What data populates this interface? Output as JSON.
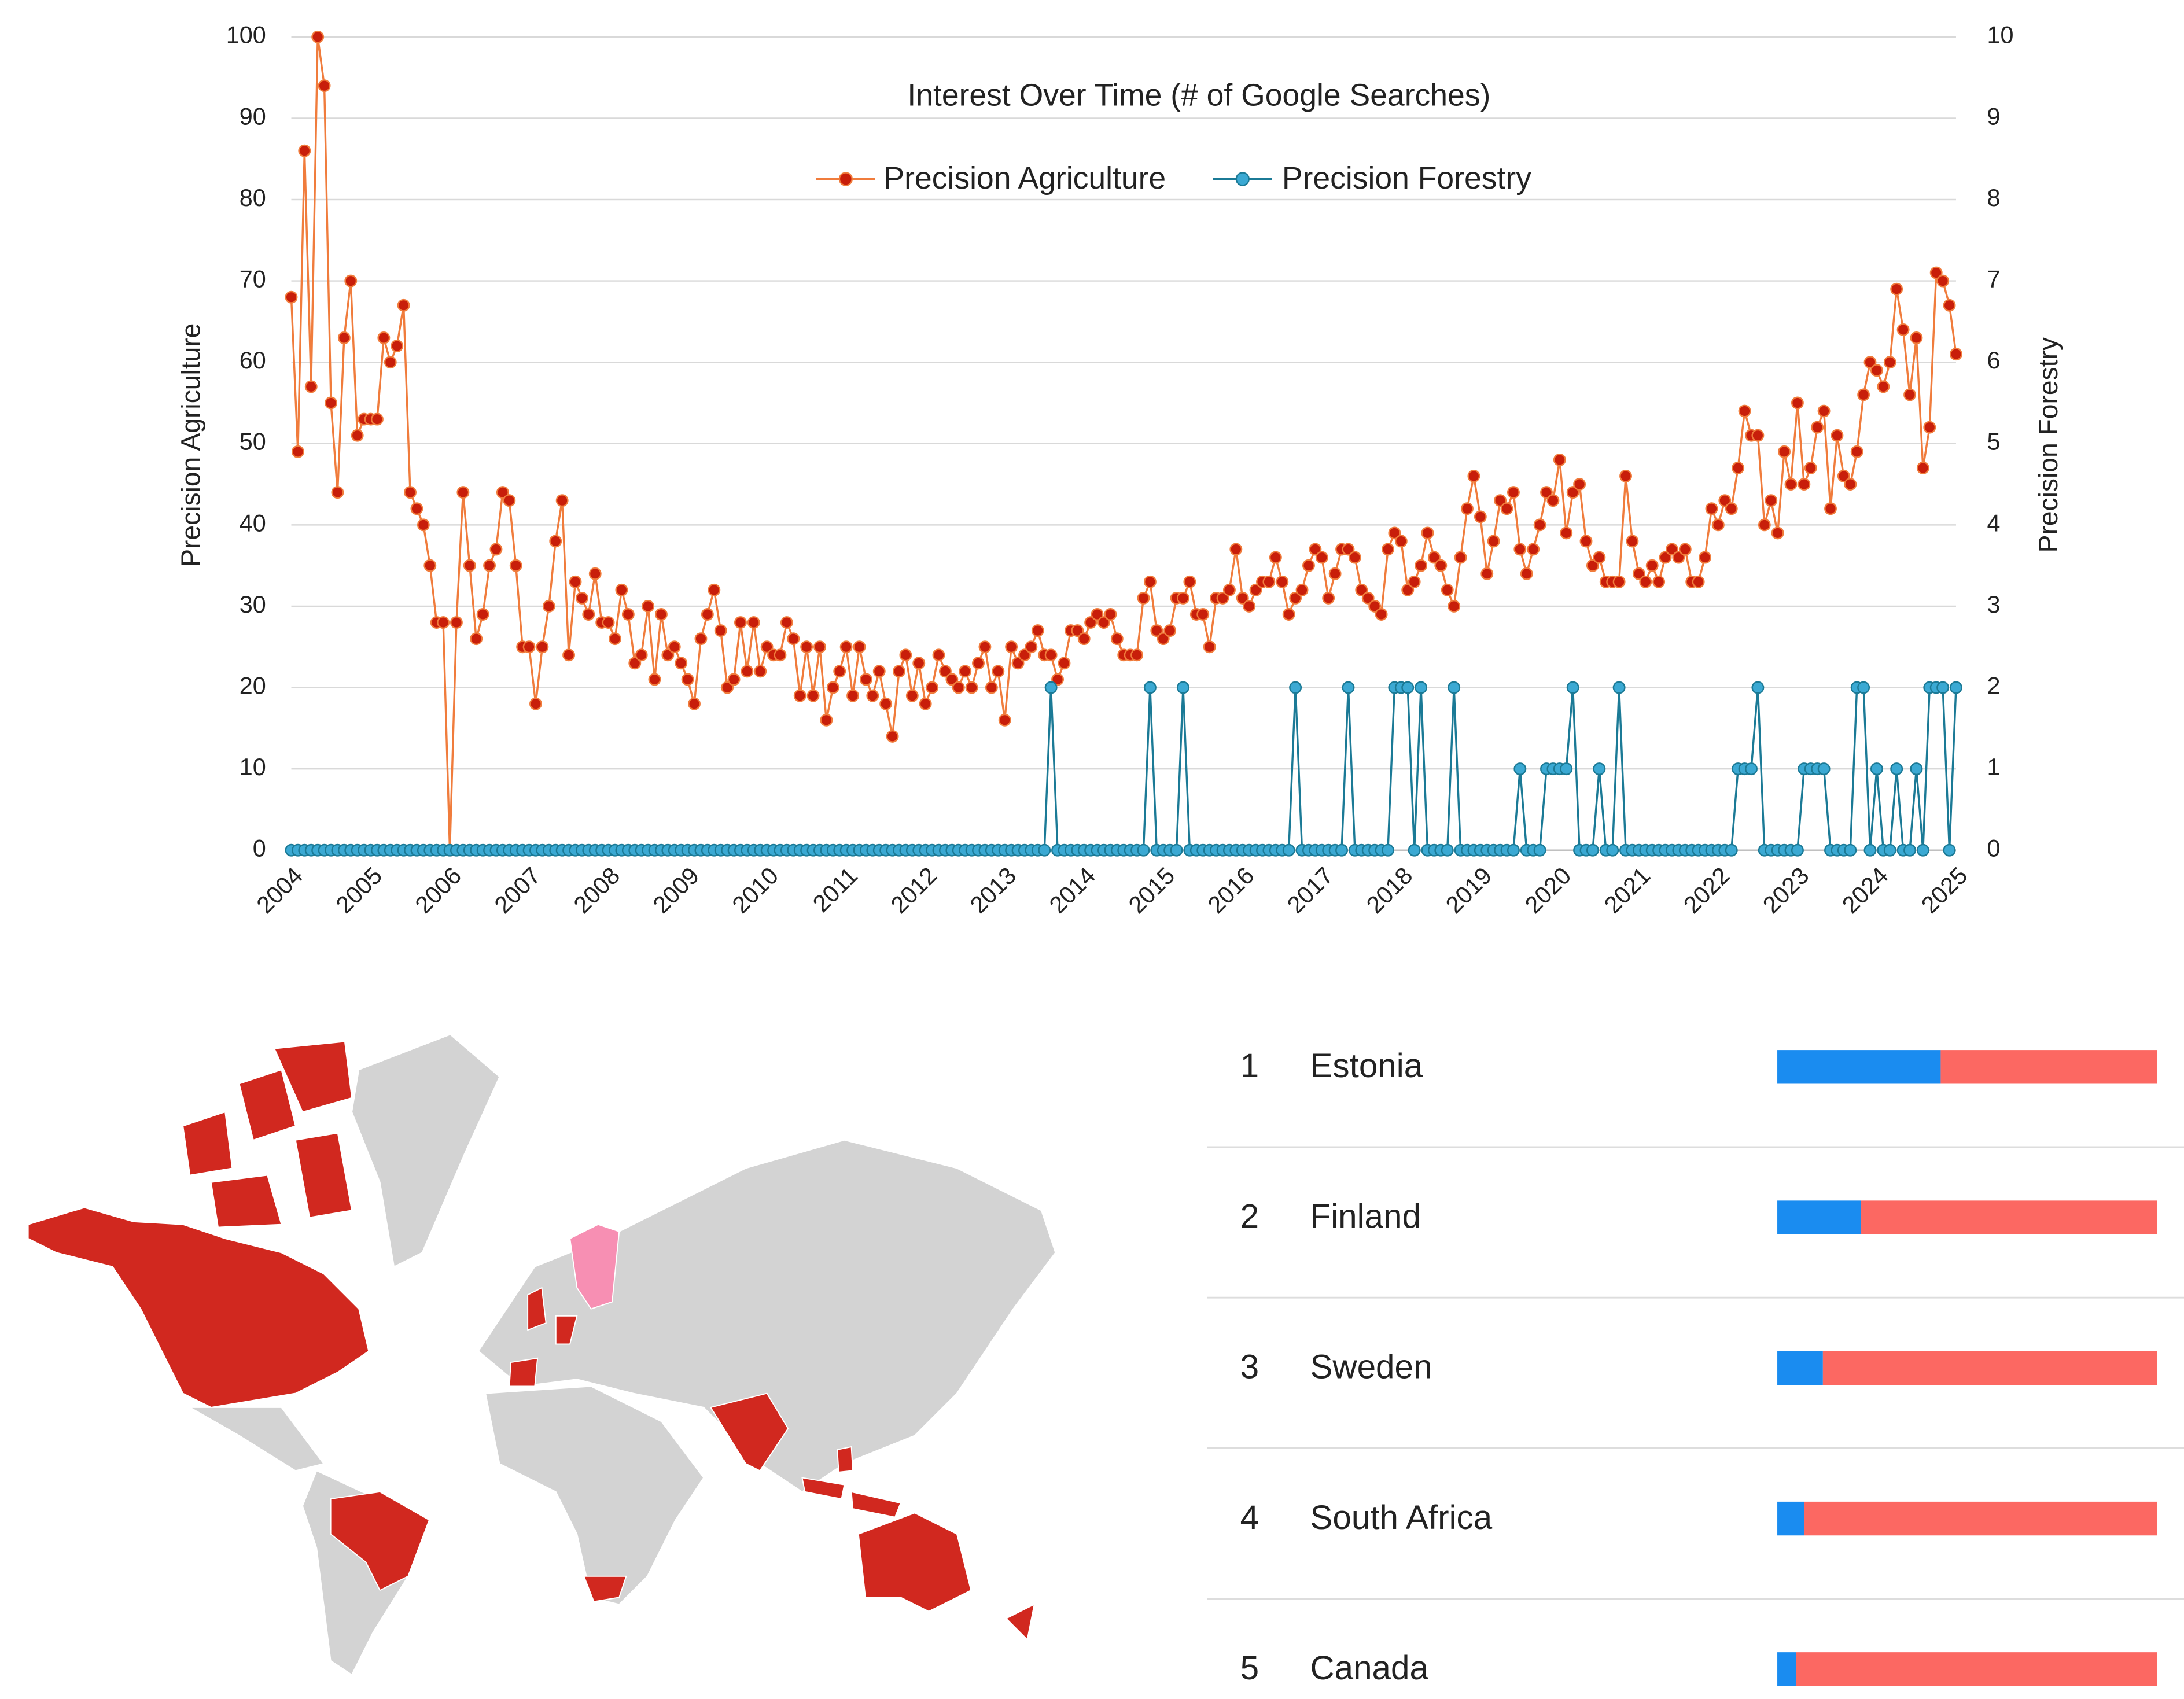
{
  "chart_data": [
    {
      "type": "line",
      "title": "Interest Over Time (# of Google Searches)",
      "ylabel": "Precision Agriculture",
      "y2label": "Precision Forestry",
      "categories": [
        "2004",
        null,
        null,
        null,
        null,
        null,
        null,
        null,
        null,
        null,
        null,
        null,
        "2005",
        null,
        null,
        null,
        null,
        null,
        null,
        null,
        null,
        null,
        null,
        null,
        "2006",
        null,
        null,
        null,
        null,
        null,
        null,
        null,
        null,
        null,
        null,
        null,
        "2007",
        null,
        null,
        null,
        null,
        null,
        null,
        null,
        null,
        null,
        null,
        null,
        "2008",
        null,
        null,
        null,
        null,
        null,
        null,
        null,
        null,
        null,
        null,
        null,
        "2009",
        null,
        null,
        null,
        null,
        null,
        null,
        null,
        null,
        null,
        null,
        null,
        "2010",
        null,
        null,
        null,
        null,
        null,
        null,
        null,
        null,
        null,
        null,
        null,
        "2011",
        null,
        null,
        null,
        null,
        null,
        null,
        null,
        null,
        null,
        null,
        null,
        "2012",
        null,
        null,
        null,
        null,
        null,
        null,
        null,
        null,
        null,
        null,
        null,
        "2013",
        null,
        null,
        null,
        null,
        null,
        null,
        null,
        null,
        null,
        null,
        null,
        "2014",
        null,
        null,
        null,
        null,
        null,
        null,
        null,
        null,
        null,
        null,
        null,
        "2015",
        null,
        null,
        null,
        null,
        null,
        null,
        null,
        null,
        null,
        null,
        null,
        "2016",
        null,
        null,
        null,
        null,
        null,
        null,
        null,
        null,
        null,
        null,
        null,
        "2017",
        null,
        null,
        null,
        null,
        null,
        null,
        null,
        null,
        null,
        null,
        null,
        "2018",
        null,
        null,
        null,
        null,
        null,
        null,
        null,
        null,
        null,
        null,
        null,
        "2019",
        null,
        null,
        null,
        null,
        null,
        null,
        null,
        null,
        null,
        null,
        null,
        "2020",
        null,
        null,
        null,
        null,
        null,
        null,
        null,
        null,
        null,
        null,
        null,
        "2021",
        null,
        null,
        null,
        null,
        null,
        null,
        null,
        null,
        null,
        null,
        null,
        "2022",
        null,
        null,
        null,
        null,
        null,
        null,
        null,
        null,
        null,
        null,
        null,
        "2023",
        null,
        null,
        null,
        null,
        null,
        null,
        null,
        null,
        null,
        null,
        null,
        "2024",
        null,
        null,
        null,
        null,
        null,
        null,
        null,
        null,
        null,
        null,
        null,
        "2025"
      ],
      "series": [
        {
          "name": "Precision Agriculture",
          "color": "#f07c3c",
          "marker_color": "#c81e0a",
          "values": [
            68,
            49,
            86,
            57,
            100,
            94,
            55,
            44,
            63,
            70,
            51,
            53,
            53,
            53,
            63,
            60,
            62,
            67,
            44,
            42,
            40,
            35,
            28,
            28,
            0,
            28,
            44,
            35,
            26,
            29,
            35,
            37,
            44,
            43,
            35,
            25,
            25,
            18,
            25,
            30,
            38,
            43,
            24,
            33,
            31,
            29,
            34,
            28,
            28,
            26,
            32,
            29,
            23,
            24,
            30,
            21,
            29,
            24,
            25,
            23,
            21,
            18,
            26,
            29,
            32,
            27,
            20,
            21,
            28,
            22,
            28,
            22,
            25,
            24,
            24,
            28,
            26,
            19,
            25,
            19,
            25,
            16,
            20,
            22,
            25,
            19,
            25,
            21,
            19,
            22,
            18,
            14,
            22,
            24,
            19,
            23,
            18,
            20,
            24,
            22,
            21,
            20,
            22,
            20,
            23,
            25,
            20,
            22,
            16,
            25,
            23,
            24,
            25,
            27,
            24,
            24,
            21,
            23,
            27,
            27,
            26,
            28,
            29,
            28,
            29,
            26,
            24,
            24,
            24,
            31,
            33,
            27,
            26,
            27,
            31,
            31,
            33,
            29,
            29,
            25,
            31,
            31,
            32,
            37,
            31,
            30,
            32,
            33,
            33,
            36,
            33,
            29,
            31,
            32,
            35,
            37,
            36,
            31,
            34,
            37,
            37,
            36,
            32,
            31,
            30,
            29,
            37,
            39,
            38,
            32,
            33,
            35,
            39,
            36,
            35,
            32,
            30,
            36,
            42,
            46,
            41,
            34,
            38,
            43,
            42,
            44,
            37,
            34,
            37,
            40,
            44,
            43,
            48,
            39,
            44,
            45,
            38,
            35,
            36,
            33,
            33,
            33,
            46,
            38,
            34,
            33,
            35,
            33,
            36,
            37,
            36,
            37,
            33,
            33,
            36,
            42,
            40,
            43,
            42,
            47,
            54,
            51,
            51,
            40,
            43,
            39,
            49,
            45,
            55,
            45,
            47,
            52,
            54,
            42,
            51,
            46,
            45,
            49,
            56,
            60,
            59,
            57,
            60,
            69,
            64,
            56,
            63,
            47,
            52,
            71,
            70,
            67,
            61
          ]
        },
        {
          "name": "Precision Forestry",
          "color": "#1b7a96",
          "marker_color": "#3ba9d3",
          "axis": "y2",
          "values": [
            0,
            0,
            0,
            0,
            0,
            0,
            0,
            0,
            0,
            0,
            0,
            0,
            0,
            0,
            0,
            0,
            0,
            0,
            0,
            0,
            0,
            0,
            0,
            0,
            0,
            0,
            0,
            0,
            0,
            0,
            0,
            0,
            0,
            0,
            0,
            0,
            0,
            0,
            0,
            0,
            0,
            0,
            0,
            0,
            0,
            0,
            0,
            0,
            0,
            0,
            0,
            0,
            0,
            0,
            0,
            0,
            0,
            0,
            0,
            0,
            0,
            0,
            0,
            0,
            0,
            0,
            0,
            0,
            0,
            0,
            0,
            0,
            0,
            0,
            0,
            0,
            0,
            0,
            0,
            0,
            0,
            0,
            0,
            0,
            0,
            0,
            0,
            0,
            0,
            0,
            0,
            0,
            0,
            0,
            0,
            0,
            0,
            0,
            0,
            0,
            0,
            0,
            0,
            0,
            0,
            0,
            0,
            0,
            0,
            0,
            0,
            0,
            0,
            0,
            0,
            2,
            0,
            0,
            0,
            0,
            0,
            0,
            0,
            0,
            0,
            0,
            0,
            0,
            0,
            0,
            2,
            0,
            0,
            0,
            0,
            2,
            0,
            0,
            0,
            0,
            0,
            0,
            0,
            0,
            0,
            0,
            0,
            0,
            0,
            0,
            0,
            0,
            2,
            0,
            0,
            0,
            0,
            0,
            0,
            0,
            2,
            0,
            0,
            0,
            0,
            0,
            0,
            2,
            2,
            2,
            0,
            2,
            0,
            0,
            0,
            0,
            2,
            0,
            0,
            0,
            0,
            0,
            0,
            0,
            0,
            0,
            1,
            0,
            0,
            0,
            1,
            1,
            1,
            1,
            2,
            0,
            0,
            0,
            1,
            0,
            0,
            2,
            0,
            0,
            0,
            0,
            0,
            0,
            0,
            0,
            0,
            0,
            0,
            0,
            0,
            0,
            0,
            0,
            0,
            1,
            1,
            1,
            2,
            0,
            0,
            0,
            0,
            0,
            0,
            1,
            1,
            1,
            1,
            0,
            0,
            0,
            0,
            2,
            2,
            0,
            1,
            0,
            0,
            1,
            0,
            0,
            1,
            0,
            2,
            2,
            2,
            0,
            2
          ]
        }
      ],
      "ylim": [
        0,
        100
      ],
      "yticks": [
        0,
        10,
        20,
        30,
        40,
        50,
        60,
        70,
        80,
        90,
        100
      ],
      "y2lim": [
        0,
        10
      ],
      "y2ticks": [
        0,
        1,
        2,
        3,
        4,
        5,
        6,
        7,
        8,
        9,
        10
      ],
      "grid": true,
      "legend": "top"
    },
    {
      "type": "bar",
      "ranks": [
        1,
        2,
        3,
        4,
        5
      ],
      "categories": [
        "Estonia",
        "Finland",
        "Sweden",
        "South Africa",
        "Canada"
      ],
      "series": [
        {
          "color": "#1a8cf0",
          "values": [
            43,
            22,
            12,
            7,
            5
          ]
        },
        {
          "color": "#fc6862",
          "values": [
            57,
            78,
            88,
            93,
            95
          ]
        }
      ],
      "xlim": [
        0,
        100
      ]
    }
  ]
}
